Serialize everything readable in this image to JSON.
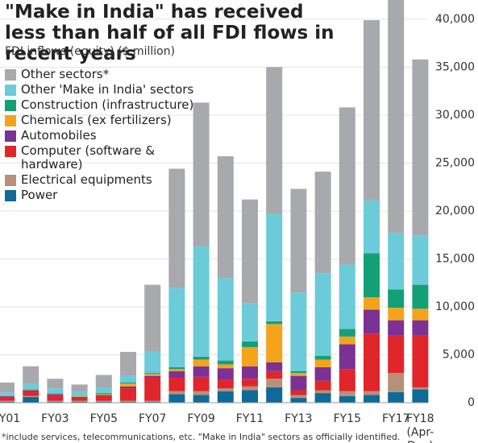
{
  "chart_data": {
    "type": "stacked_bar",
    "title": "\"Make in India\" has received less than half of all FDI flows in recent years",
    "subtitle": "FDI inflows (equity) ($ million)",
    "footnote": "*include services, telecommunications, etc. \"Make in India\" sectors as officially identified.",
    "categories": [
      "FY01",
      null,
      "FY03",
      null,
      "FY05",
      null,
      "FY07",
      null,
      "FY09",
      null,
      "FY11",
      null,
      "FY13",
      null,
      "FY15",
      null,
      "FY17",
      "FY18 (Apr-Dec)"
    ],
    "series": [
      {
        "name": "Power",
        "color": "#0f6a9a",
        "values": [
          100,
          600,
          100,
          100,
          100,
          100,
          100,
          900,
          800,
          1200,
          1300,
          1600,
          500,
          1000,
          700,
          800,
          1100,
          1400
        ]
      },
      {
        "name": "Electrical equipments",
        "color": "#b5917b",
        "values": [
          100,
          100,
          100,
          100,
          100,
          100,
          100,
          300,
          400,
          300,
          400,
          900,
          300,
          300,
          500,
          400,
          2000,
          200
        ]
      },
      {
        "name": "Computer (software & hardware)",
        "color": "#e0262b",
        "values": [
          400,
          400,
          500,
          300,
          500,
          1300,
          2400,
          1400,
          1500,
          900,
          800,
          800,
          500,
          1000,
          2300,
          6000,
          3900,
          5400
        ]
      },
      {
        "name": "Automobiles",
        "color": "#7b3294",
        "values": [
          100,
          200,
          200,
          100,
          100,
          200,
          200,
          700,
          1100,
          1200,
          1300,
          900,
          1500,
          1400,
          2600,
          2500,
          1600,
          1600
        ]
      },
      {
        "name": "Chemicals (ex fertilizers)",
        "color": "#f5a31a",
        "values": [
          50,
          100,
          50,
          50,
          100,
          300,
          200,
          200,
          700,
          400,
          2000,
          4000,
          300,
          800,
          800,
          1300,
          1300,
          1200
        ]
      },
      {
        "name": "Construction (infrastructure)",
        "color": "#14a077",
        "values": [
          20,
          50,
          50,
          50,
          100,
          100,
          100,
          200,
          300,
          400,
          600,
          300,
          200,
          400,
          800,
          4600,
          1900,
          2500
        ]
      },
      {
        "name": "Other 'Make in India' sectors",
        "color": "#6ccbd8",
        "values": [
          300,
          500,
          500,
          400,
          600,
          700,
          2200,
          8300,
          11500,
          8600,
          4000,
          11200,
          8200,
          8600,
          6700,
          5500,
          5900,
          5100
        ]
      },
      {
        "name": "Other sectors*",
        "color": "#a7a9ac",
        "values": [
          1030,
          1850,
          1000,
          800,
          1300,
          2500,
          7000,
          12400,
          15000,
          12700,
          10800,
          15300,
          10800,
          10600,
          16400,
          18800,
          25800,
          18400
        ]
      }
    ],
    "ylim": [
      0,
      42000
    ],
    "yticks": [
      0,
      {
        "value": 5000,
        "label": "5,000"
      },
      {
        "value": 10000,
        "label": "10,000"
      },
      {
        "value": 15000,
        "label": "15,000"
      },
      {
        "value": 20000,
        "label": "20,000"
      },
      {
        "value": 25000,
        "label": "25,000"
      },
      {
        "value": 30000,
        "label": "30,000"
      },
      {
        "value": 35000,
        "label": "35,000"
      },
      {
        "value": 40000,
        "label": "40,000"
      }
    ],
    "grid": true
  }
}
